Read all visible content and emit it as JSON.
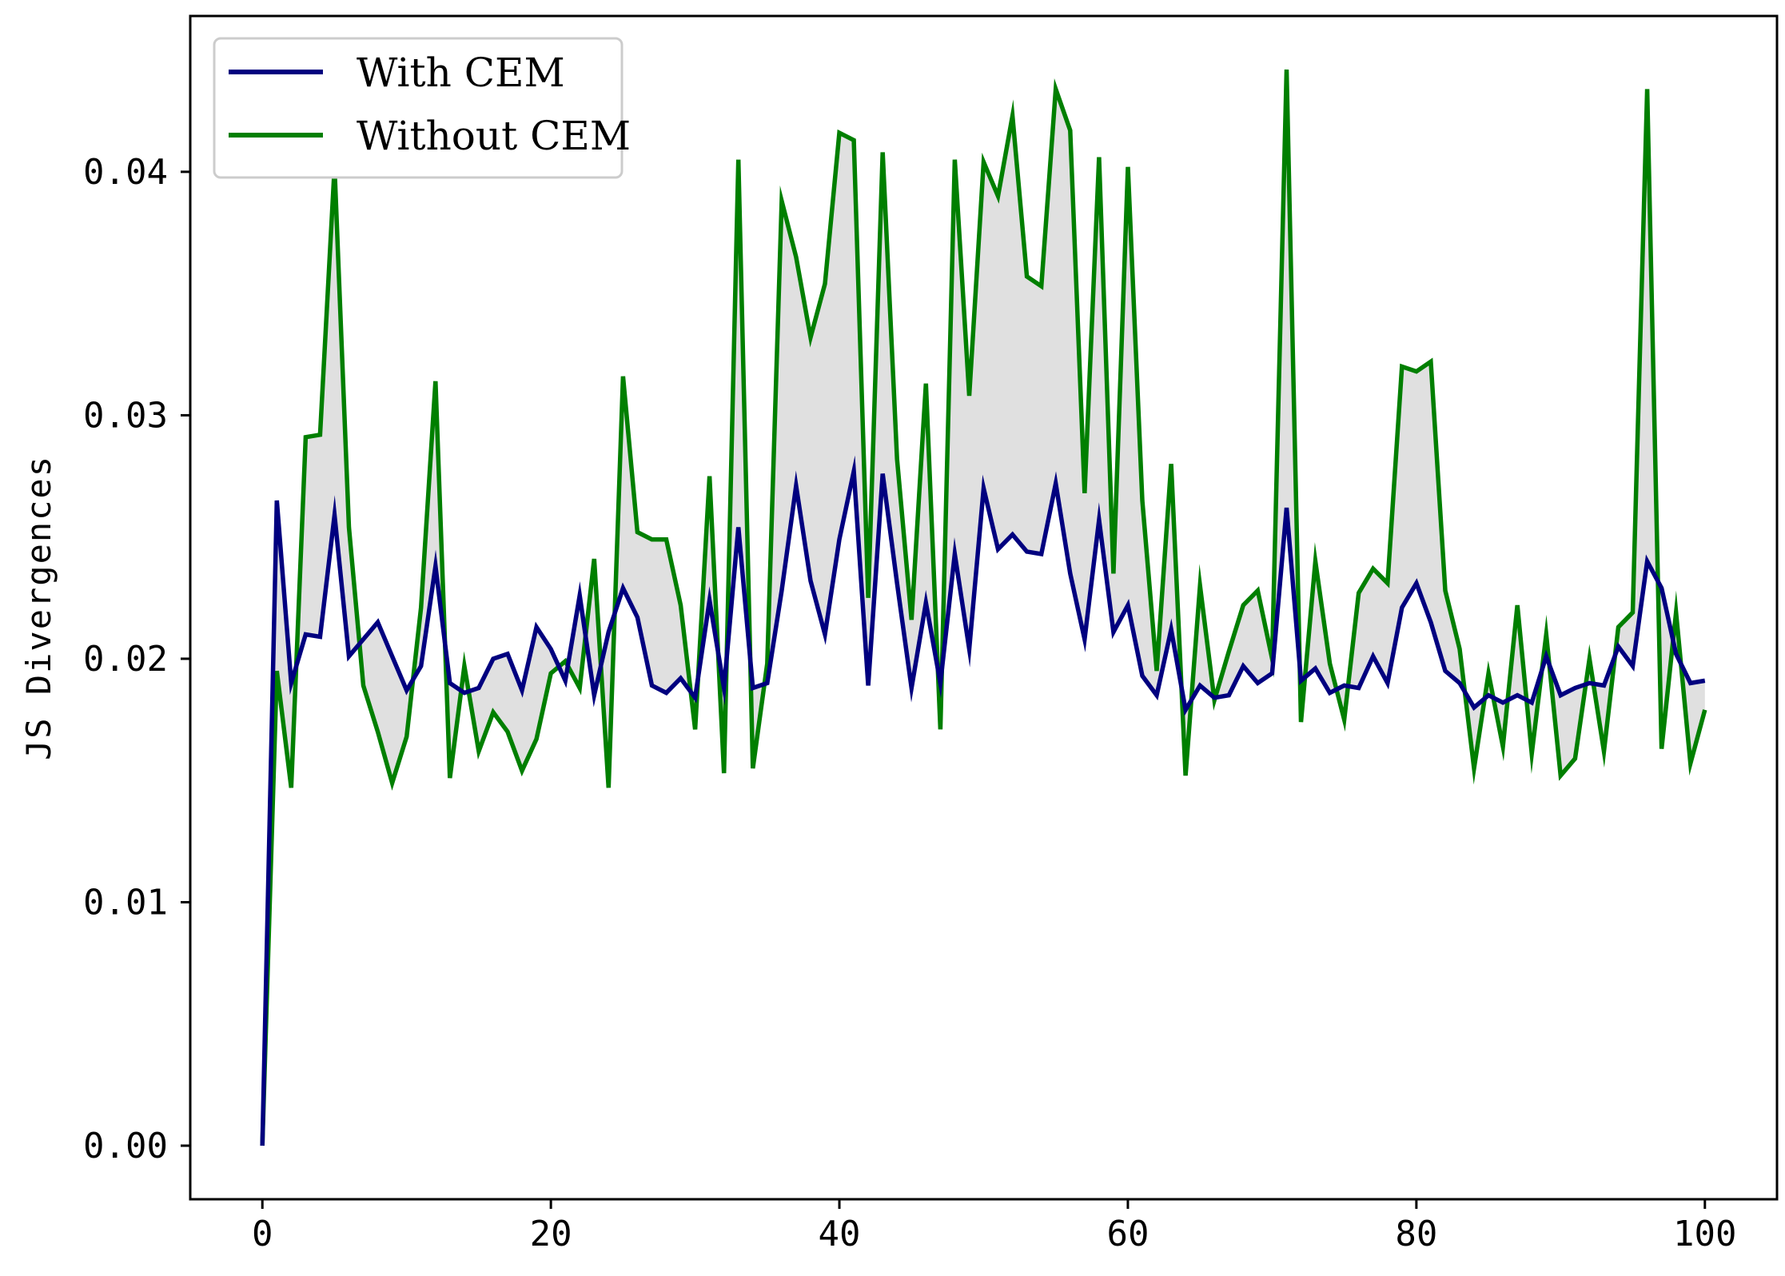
{
  "chart_data": {
    "type": "line",
    "ylabel": "JS Divergences",
    "xlabel": "",
    "xlim": [
      -5,
      105
    ],
    "ylim": [
      -0.0022,
      0.0464
    ],
    "x_ticks": [
      0,
      20,
      40,
      60,
      80,
      100
    ],
    "x_tick_labels": [
      "0",
      "20",
      "40",
      "60",
      "80",
      "100"
    ],
    "y_ticks": [
      0.0,
      0.01,
      0.02,
      0.03,
      0.04
    ],
    "y_tick_labels": [
      "0.00",
      "0.01",
      "0.02",
      "0.03",
      "0.04"
    ],
    "grid": false,
    "legend_position": "top-left",
    "fill_between": {
      "color": "#e0e0e0"
    },
    "x": [
      0,
      1,
      2,
      3,
      4,
      5,
      6,
      7,
      8,
      9,
      10,
      11,
      12,
      13,
      14,
      15,
      16,
      17,
      18,
      19,
      20,
      21,
      22,
      23,
      24,
      25,
      26,
      27,
      28,
      29,
      30,
      31,
      32,
      33,
      34,
      35,
      36,
      37,
      38,
      39,
      40,
      41,
      42,
      43,
      44,
      45,
      46,
      47,
      48,
      49,
      50,
      51,
      52,
      53,
      54,
      55,
      56,
      57,
      58,
      59,
      60,
      61,
      62,
      63,
      64,
      65,
      66,
      67,
      68,
      69,
      70,
      71,
      72,
      73,
      74,
      75,
      76,
      77,
      78,
      79,
      80,
      81,
      82,
      83,
      84,
      85,
      86,
      87,
      88,
      89,
      90,
      91,
      92,
      93,
      94,
      95,
      96,
      97,
      98,
      99,
      100
    ],
    "series": [
      {
        "name": "With CEM",
        "color": "#00007f",
        "values": [
          0.0,
          0.0265,
          0.019,
          0.021,
          0.0209,
          0.0259,
          0.0201,
          0.0208,
          0.0215,
          0.0201,
          0.0187,
          0.0197,
          0.0238,
          0.019,
          0.0186,
          0.0188,
          0.02,
          0.0202,
          0.0187,
          0.0213,
          0.0204,
          0.0191,
          0.0226,
          0.0185,
          0.0211,
          0.0229,
          0.0217,
          0.0189,
          0.0186,
          0.0192,
          0.0184,
          0.0224,
          0.0188,
          0.0254,
          0.0188,
          0.019,
          0.0228,
          0.0271,
          0.0232,
          0.021,
          0.0249,
          0.0277,
          0.0189,
          0.0276,
          0.0231,
          0.0188,
          0.0223,
          0.019,
          0.0243,
          0.0204,
          0.027,
          0.0245,
          0.0251,
          0.0244,
          0.0243,
          0.0272,
          0.0235,
          0.0208,
          0.0257,
          0.0211,
          0.0222,
          0.0193,
          0.0185,
          0.0212,
          0.0179,
          0.0189,
          0.0184,
          0.0185,
          0.0197,
          0.019,
          0.0194,
          0.0262,
          0.0191,
          0.0196,
          0.0186,
          0.0189,
          0.0188,
          0.0201,
          0.019,
          0.0221,
          0.0231,
          0.0215,
          0.0195,
          0.019,
          0.018,
          0.0185,
          0.0182,
          0.0185,
          0.0182,
          0.0201,
          0.0185,
          0.0188,
          0.019,
          0.0189,
          0.0205,
          0.0197,
          0.024,
          0.0229,
          0.0202,
          0.019,
          0.0191
        ]
      },
      {
        "name": "Without CEM",
        "color": "#007f00",
        "values": [
          0.0,
          0.0195,
          0.0147,
          0.0291,
          0.0292,
          0.0402,
          0.0254,
          0.0189,
          0.017,
          0.0149,
          0.0168,
          0.0221,
          0.0314,
          0.0151,
          0.0197,
          0.0162,
          0.0178,
          0.017,
          0.0154,
          0.0167,
          0.0194,
          0.0199,
          0.0188,
          0.0241,
          0.0147,
          0.0316,
          0.0252,
          0.0249,
          0.0249,
          0.0222,
          0.0171,
          0.0275,
          0.0153,
          0.0405,
          0.0155,
          0.0198,
          0.0388,
          0.0365,
          0.0332,
          0.0354,
          0.0416,
          0.0413,
          0.0225,
          0.0408,
          0.0282,
          0.0216,
          0.0313,
          0.0171,
          0.0405,
          0.0308,
          0.0404,
          0.039,
          0.0423,
          0.0357,
          0.0353,
          0.0434,
          0.0417,
          0.0268,
          0.0406,
          0.0235,
          0.0402,
          0.0265,
          0.0195,
          0.028,
          0.0152,
          0.023,
          0.0183,
          0.0203,
          0.0222,
          0.0228,
          0.02,
          0.0442,
          0.0174,
          0.024,
          0.0198,
          0.0175,
          0.0227,
          0.0237,
          0.0231,
          0.032,
          0.0318,
          0.0322,
          0.0228,
          0.0204,
          0.0155,
          0.0194,
          0.0164,
          0.0222,
          0.0161,
          0.021,
          0.0152,
          0.0159,
          0.02,
          0.0162,
          0.0213,
          0.0219,
          0.0434,
          0.0163,
          0.0219,
          0.0157,
          0.0179
        ]
      }
    ]
  }
}
